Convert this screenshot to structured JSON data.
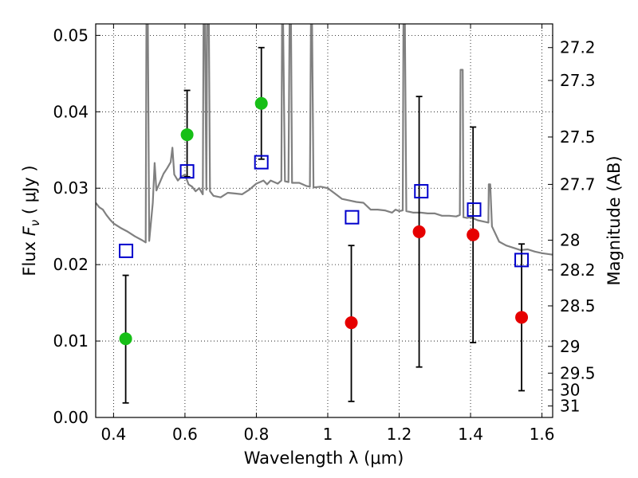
{
  "chart_data": {
    "type": "scatter",
    "xlabel": "Wavelength  λ (μm)",
    "ylabel": "Flux  F_ν  ( μJy )",
    "ylabel_parts": {
      "pre": "Flux  ",
      "sym": "F",
      "sub": "ν",
      "unit": "  ( μJy )"
    },
    "y2label": "Magnitude (AB)",
    "xlim": [
      0.35,
      1.63
    ],
    "ylim": [
      0.0,
      0.0515
    ],
    "xticks": [
      0.4,
      0.6,
      0.8,
      1.0,
      1.2,
      1.4,
      1.6
    ],
    "xtick_labels": [
      "0.4",
      "0.6",
      "0.8",
      "1",
      "1.2",
      "1.4",
      "1.6"
    ],
    "yticks": [
      0.0,
      0.01,
      0.02,
      0.03,
      0.04,
      0.05
    ],
    "ytick_labels": [
      "0.00",
      "0.01",
      "0.02",
      "0.03",
      "0.04",
      "0.05"
    ],
    "y2ticks": [
      {
        "label": "27.2",
        "flux": 0.0484
      },
      {
        "label": "27.3",
        "flux": 0.0441
      },
      {
        "label": "27.5",
        "flux": 0.0367
      },
      {
        "label": "27.7",
        "flux": 0.0305
      },
      {
        "label": "28",
        "flux": 0.0232
      },
      {
        "label": "28.2",
        "flux": 0.0193
      },
      {
        "label": "28.5",
        "flux": 0.0146
      },
      {
        "label": "29",
        "flux": 0.0093
      },
      {
        "label": "29.5",
        "flux": 0.0058
      },
      {
        "label": "30",
        "flux": 0.0036
      },
      {
        "label": "31",
        "flux": 0.0015
      }
    ],
    "grid": true,
    "colors": {
      "model": "#808080",
      "green": "#17bf17",
      "red": "#e60000",
      "box": "#0000cc",
      "errorbar": "#000000"
    },
    "model_spectrum": [
      [
        0.35,
        0.0281
      ],
      [
        0.36,
        0.0275
      ],
      [
        0.37,
        0.0272
      ],
      [
        0.38,
        0.0265
      ],
      [
        0.39,
        0.0259
      ],
      [
        0.4,
        0.0254
      ],
      [
        0.42,
        0.0248
      ],
      [
        0.44,
        0.0243
      ],
      [
        0.46,
        0.0237
      ],
      [
        0.48,
        0.0232
      ],
      [
        0.49,
        0.0229
      ],
      [
        0.492,
        0.0515
      ],
      [
        0.496,
        0.0515
      ],
      [
        0.5,
        0.0231
      ],
      [
        0.51,
        0.0281
      ],
      [
        0.515,
        0.0333
      ],
      [
        0.52,
        0.0297
      ],
      [
        0.53,
        0.0308
      ],
      [
        0.54,
        0.0319
      ],
      [
        0.55,
        0.0326
      ],
      [
        0.56,
        0.0334
      ],
      [
        0.565,
        0.0353
      ],
      [
        0.57,
        0.0318
      ],
      [
        0.58,
        0.031
      ],
      [
        0.59,
        0.0315
      ],
      [
        0.6,
        0.0318
      ],
      [
        0.61,
        0.0305
      ],
      [
        0.62,
        0.0302
      ],
      [
        0.63,
        0.0296
      ],
      [
        0.64,
        0.03
      ],
      [
        0.65,
        0.0292
      ],
      [
        0.652,
        0.0515
      ],
      [
        0.656,
        0.0515
      ],
      [
        0.66,
        0.0298
      ],
      [
        0.662,
        0.0515
      ],
      [
        0.667,
        0.0515
      ],
      [
        0.67,
        0.0296
      ],
      [
        0.68,
        0.029
      ],
      [
        0.7,
        0.0288
      ],
      [
        0.72,
        0.0294
      ],
      [
        0.74,
        0.0293
      ],
      [
        0.76,
        0.0292
      ],
      [
        0.78,
        0.0298
      ],
      [
        0.8,
        0.0306
      ],
      [
        0.81,
        0.0308
      ],
      [
        0.82,
        0.031
      ],
      [
        0.83,
        0.0305
      ],
      [
        0.84,
        0.031
      ],
      [
        0.86,
        0.0306
      ],
      [
        0.87,
        0.031
      ],
      [
        0.872,
        0.0515
      ],
      [
        0.875,
        0.0515
      ],
      [
        0.88,
        0.0309
      ],
      [
        0.89,
        0.0308
      ],
      [
        0.893,
        0.0515
      ],
      [
        0.897,
        0.0515
      ],
      [
        0.9,
        0.0307
      ],
      [
        0.92,
        0.0307
      ],
      [
        0.94,
        0.0303
      ],
      [
        0.95,
        0.0302
      ],
      [
        0.953,
        0.0515
      ],
      [
        0.956,
        0.0515
      ],
      [
        0.96,
        0.0301
      ],
      [
        0.98,
        0.0302
      ],
      [
        1.0,
        0.03
      ],
      [
        1.02,
        0.0293
      ],
      [
        1.04,
        0.0286
      ],
      [
        1.06,
        0.0284
      ],
      [
        1.08,
        0.0282
      ],
      [
        1.1,
        0.0281
      ],
      [
        1.12,
        0.0272
      ],
      [
        1.14,
        0.0272
      ],
      [
        1.16,
        0.0271
      ],
      [
        1.18,
        0.0268
      ],
      [
        1.19,
        0.0272
      ],
      [
        1.2,
        0.027
      ],
      [
        1.21,
        0.0271
      ],
      [
        1.212,
        0.0515
      ],
      [
        1.216,
        0.0515
      ],
      [
        1.22,
        0.027
      ],
      [
        1.24,
        0.0268
      ],
      [
        1.26,
        0.0268
      ],
      [
        1.28,
        0.0267
      ],
      [
        1.3,
        0.0267
      ],
      [
        1.32,
        0.0264
      ],
      [
        1.34,
        0.0264
      ],
      [
        1.36,
        0.0263
      ],
      [
        1.37,
        0.0265
      ],
      [
        1.372,
        0.0455
      ],
      [
        1.378,
        0.0455
      ],
      [
        1.38,
        0.0262
      ],
      [
        1.39,
        0.0261
      ],
      [
        1.4,
        0.0262
      ],
      [
        1.42,
        0.0258
      ],
      [
        1.44,
        0.0256
      ],
      [
        1.45,
        0.0255
      ],
      [
        1.451,
        0.0305
      ],
      [
        1.455,
        0.0305
      ],
      [
        1.46,
        0.025
      ],
      [
        1.48,
        0.023
      ],
      [
        1.5,
        0.0225
      ],
      [
        1.52,
        0.0222
      ],
      [
        1.54,
        0.0219
      ],
      [
        1.56,
        0.022
      ],
      [
        1.58,
        0.0217
      ],
      [
        1.6,
        0.0215
      ],
      [
        1.63,
        0.0213
      ]
    ],
    "photometry_points": [
      {
        "x": 0.434,
        "y": 0.0103,
        "color": "green",
        "err": [
          0.0019,
          0.0186
        ]
      },
      {
        "x": 0.606,
        "y": 0.037,
        "color": "green",
        "err": [
          0.0315,
          0.0428
        ]
      },
      {
        "x": 0.814,
        "y": 0.0411,
        "color": "green",
        "err": [
          0.0338,
          0.0484
        ]
      },
      {
        "x": 1.066,
        "y": 0.0124,
        "color": "red",
        "err": [
          0.0021,
          0.0225
        ]
      },
      {
        "x": 1.256,
        "y": 0.0243,
        "color": "red",
        "err": [
          0.0066,
          0.042
        ]
      },
      {
        "x": 1.407,
        "y": 0.0239,
        "color": "red",
        "err": [
          0.0098,
          0.038
        ]
      },
      {
        "x": 1.543,
        "y": 0.0131,
        "color": "red",
        "err": [
          0.0035,
          0.0227
        ]
      }
    ],
    "model_band_fluxes": [
      {
        "x": 0.435,
        "y": 0.0218
      },
      {
        "x": 0.606,
        "y": 0.0322
      },
      {
        "x": 0.814,
        "y": 0.0334
      },
      {
        "x": 1.068,
        "y": 0.0262
      },
      {
        "x": 1.262,
        "y": 0.0296
      },
      {
        "x": 1.41,
        "y": 0.0272
      },
      {
        "x": 1.543,
        "y": 0.0206
      }
    ]
  }
}
